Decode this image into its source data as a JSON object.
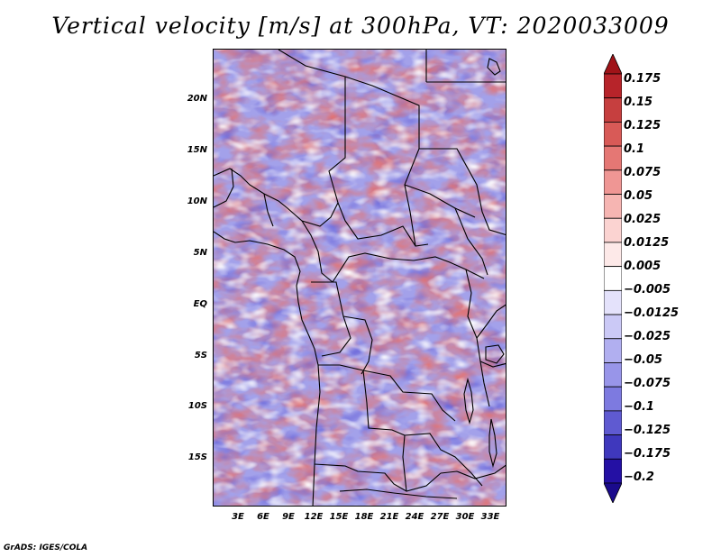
{
  "title": "Vertical velocity [m/s] at 300hPa, VT: 2020033009",
  "footer": "GrADS: IGES/COLA",
  "lat_ticks": [
    "20N",
    "15N",
    "10N",
    "5N",
    "EQ",
    "5S",
    "10S",
    "15S"
  ],
  "lon_ticks": [
    "3E",
    "6E",
    "9E",
    "12E",
    "15E",
    "18E",
    "21E",
    "24E",
    "27E",
    "30E",
    "33E"
  ],
  "colorbar": {
    "labels": [
      "0.175",
      "0.15",
      "0.125",
      "0.1",
      "0.075",
      "0.05",
      "0.025",
      "0.0125",
      "0.005",
      "−0.005",
      "−0.0125",
      "−0.025",
      "−0.05",
      "−0.075",
      "−0.1",
      "−0.125",
      "−0.175",
      "−0.2"
    ],
    "colors": [
      "#a01318",
      "#b7242a",
      "#c63f3f",
      "#d85a57",
      "#e57774",
      "#ef9694",
      "#f6b5b2",
      "#fbd3d1",
      "#fde9e8",
      "#ffffff",
      "#e4e2fb",
      "#cbc9f6",
      "#b1aff0",
      "#9895e9",
      "#7d7ae0",
      "#5f5ad1",
      "#3f38bd",
      "#2410a4",
      "#1a0a8c"
    ]
  },
  "map": {
    "lon_range": [
      0,
      35
    ],
    "lat_range": [
      -20,
      24
    ],
    "colors": {
      "background_field": "#9c9ae8",
      "positive": "#e8706a",
      "negative": "#6d69dd",
      "light": "#ffffff",
      "border": "#000000"
    }
  }
}
